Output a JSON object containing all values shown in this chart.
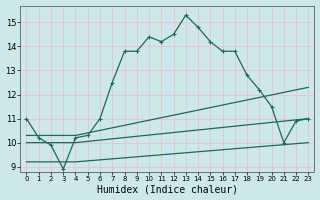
{
  "xlabel": "Humidex (Indice chaleur)",
  "bg_color": "#cce8e8",
  "grid_color": "#e8c8c8",
  "line_color": "#1a6b5a",
  "xlim": [
    -0.5,
    23.5
  ],
  "ylim": [
    8.8,
    15.7
  ],
  "yticks": [
    9,
    10,
    11,
    12,
    13,
    14,
    15
  ],
  "xticks": [
    0,
    1,
    2,
    3,
    4,
    5,
    6,
    7,
    8,
    9,
    10,
    11,
    12,
    13,
    14,
    15,
    16,
    17,
    18,
    19,
    20,
    21,
    22,
    23
  ],
  "line1_x": [
    0,
    1,
    2,
    3,
    4,
    5,
    6,
    7,
    8,
    9,
    10,
    11,
    12,
    13,
    14,
    15,
    16,
    17,
    18,
    19,
    20,
    21,
    22,
    23
  ],
  "line1_y": [
    11.0,
    10.2,
    9.9,
    8.9,
    10.2,
    10.3,
    11.0,
    12.5,
    13.8,
    13.8,
    14.4,
    14.2,
    14.5,
    15.3,
    14.8,
    14.2,
    13.8,
    13.8,
    12.8,
    12.2,
    11.5,
    10.0,
    10.9,
    11.0
  ],
  "line2_x": [
    0,
    4,
    23
  ],
  "line2_y": [
    10.3,
    10.3,
    12.3
  ],
  "line3_x": [
    0,
    4,
    23
  ],
  "line3_y": [
    10.0,
    10.0,
    11.0
  ],
  "line4_x": [
    0,
    4,
    23
  ],
  "line4_y": [
    9.2,
    9.2,
    10.0
  ]
}
